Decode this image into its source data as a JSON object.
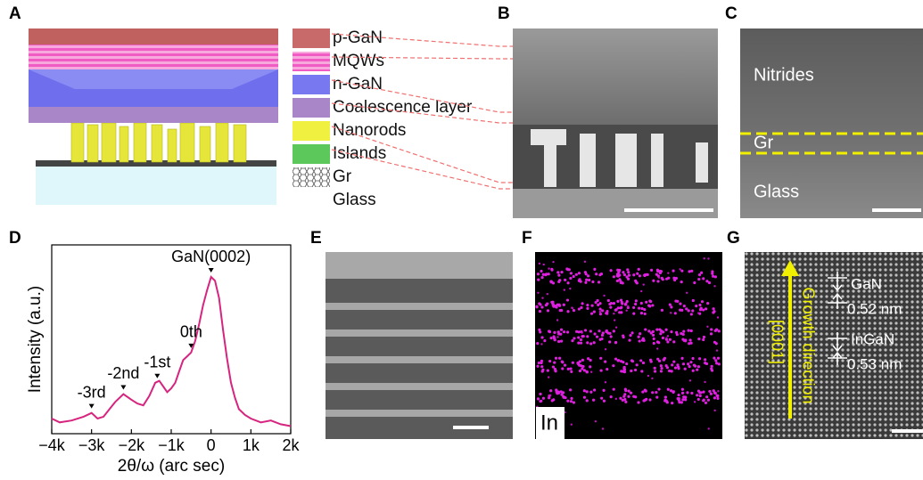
{
  "panels": [
    "A",
    "B",
    "C",
    "D",
    "E",
    "F",
    "G"
  ],
  "legend": [
    {
      "label": "p-GaN",
      "color": "#c86a6a"
    },
    {
      "label": "MQWs",
      "color": "#f06ec8"
    },
    {
      "label": "n-GaN",
      "color": "#7878f0"
    },
    {
      "label": "Coalescence layer",
      "color": "#a886c8"
    },
    {
      "label": "Nanorods",
      "color": "#f0f040"
    },
    {
      "label": "Islands",
      "color": "#5cc85c"
    },
    {
      "label": "Gr",
      "color": "#bbbbbb"
    },
    {
      "label": "Glass",
      "color": "#ffffff"
    }
  ],
  "panel_c": {
    "labels": [
      "Nitrides",
      "Gr",
      "Glass"
    ]
  },
  "panel_f": {
    "label": "In"
  },
  "panel_g": {
    "direction": "Growth direction",
    "axis": "[0001]",
    "layers": [
      "GaN",
      "0.52 nm",
      "InGaN",
      "0.53 nm"
    ]
  },
  "chart_data": {
    "type": "line",
    "xlabel": "2θ/ω (arc sec)",
    "ylabel": "Intensity (a.u.)",
    "x": [
      -4000,
      -3800,
      -3500,
      -3200,
      -3000,
      -2850,
      -2700,
      -2550,
      -2400,
      -2200,
      -2000,
      -1850,
      -1700,
      -1550,
      -1400,
      -1300,
      -1200,
      -1100,
      -1000,
      -900,
      -800,
      -700,
      -600,
      -500,
      -400,
      -300,
      -200,
      -100,
      0,
      100,
      200,
      300,
      400,
      500,
      600,
      700,
      850,
      1000,
      1250,
      1500,
      1750,
      2000
    ],
    "series": [
      {
        "name": "GaN",
        "color": "#d6247f",
        "values": [
          8,
          6,
          7,
          9,
          11,
          8,
          9,
          13,
          17,
          21,
          18,
          16,
          15,
          20,
          27,
          28,
          25,
          22,
          24,
          27,
          33,
          39,
          41,
          43,
          49,
          58,
          68,
          76,
          83,
          81,
          72,
          55,
          40,
          27,
          19,
          13,
          10,
          8,
          6,
          7,
          5,
          4
        ]
      }
    ],
    "annotations": [
      {
        "text": "GaN(0002)",
        "x": 0
      },
      {
        "text": "0th",
        "x": -500
      },
      {
        "text": "-1st",
        "x": -1350
      },
      {
        "text": "-2nd",
        "x": -2200
      },
      {
        "text": "-3rd",
        "x": -3000
      }
    ],
    "xlim": [
      -4000,
      2000
    ],
    "ylim": [
      0,
      100
    ],
    "xticks": [
      {
        "value": -4000,
        "label": "−4k"
      },
      {
        "value": -3000,
        "label": "−3k"
      },
      {
        "value": -2000,
        "label": "−2k"
      },
      {
        "value": -1000,
        "label": "−1k"
      },
      0,
      {
        "value": 1000,
        "label": "1k"
      },
      {
        "value": 2000,
        "label": "2k"
      }
    ]
  }
}
